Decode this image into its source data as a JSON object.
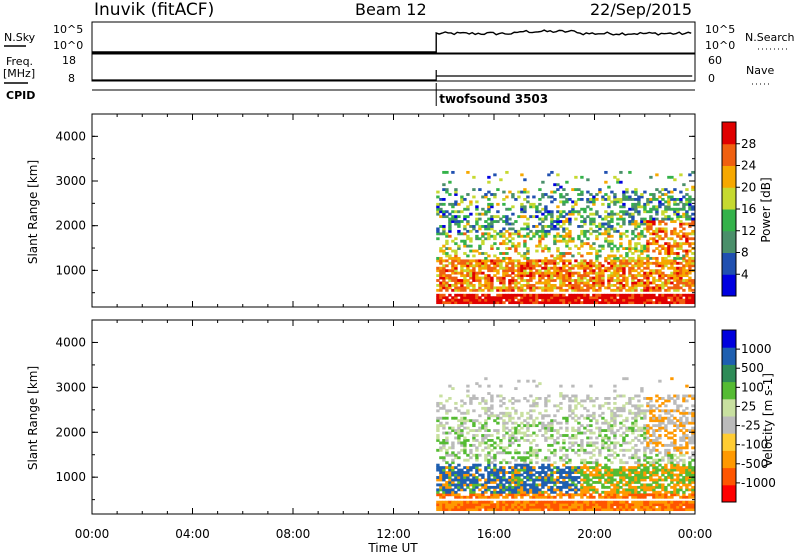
{
  "header": {
    "station": "Inuvik (fitACF)",
    "beam": "Beam 12",
    "date": "22/Sep/2015"
  },
  "top_panels": {
    "nsky_label": "N.Sky",
    "nsky_ticks": [
      "10^5",
      "10^0"
    ],
    "nsearch_label": "N.Search",
    "nsearch_ticks": [
      "10^5",
      "10^0"
    ],
    "freq_label": "Freq.",
    "freq_unit": "[MHz]",
    "freq_ticks": [
      "18",
      "8"
    ],
    "nave_label": "Nave",
    "nave_ticks": [
      "60",
      "0"
    ],
    "cpid_label": "CPID",
    "cpid_value": "twofsound 3503"
  },
  "colors": {
    "power_scale": [
      "#0000e0",
      "#2050b0",
      "#4a8f6a",
      "#34b24a",
      "#c6d930",
      "#f6a800",
      "#f06010",
      "#e00000"
    ],
    "velocity_scale": [
      "#ff0000",
      "#ff5500",
      "#ff9900",
      "#ffcc33",
      "#bbbbbb",
      "#c8e0a0",
      "#55bb33",
      "#2e8b57",
      "#1e5fb0",
      "#0000dd"
    ]
  },
  "chart_data": [
    {
      "type": "heatmap",
      "name": "power",
      "xlabel": "Time UT",
      "ylabel": "Slant Range [km]",
      "xlim": [
        0,
        24
      ],
      "ylim": [
        180,
        4500
      ],
      "x_tick_labels": [
        "00:00",
        "04:00",
        "08:00",
        "12:00",
        "16:00",
        "20:00",
        "00:00"
      ],
      "y_ticks": [
        1000,
        2000,
        3000,
        4000
      ],
      "colorbar": {
        "label": "Power [dB]",
        "tick_labels": [
          "4",
          "8",
          "12",
          "16",
          "20",
          "24",
          "28"
        ],
        "range": [
          0,
          30
        ]
      },
      "data_start_hour": 13.7
    },
    {
      "type": "heatmap",
      "name": "velocity",
      "xlabel": "Time UT",
      "ylabel": "Slant Range [km]",
      "xlim": [
        0,
        24
      ],
      "ylim": [
        180,
        4500
      ],
      "x_tick_labels": [
        "00:00",
        "04:00",
        "08:00",
        "12:00",
        "16:00",
        "20:00",
        "00:00"
      ],
      "y_ticks": [
        1000,
        2000,
        3000,
        4000
      ],
      "colorbar": {
        "label": "Velocity [m s-1]",
        "tick_labels": [
          "1000",
          "500",
          "100",
          "25",
          "-25",
          "-100",
          "-500",
          "-1000"
        ],
        "range": [
          -1000,
          1000
        ]
      },
      "data_start_hour": 13.7
    }
  ]
}
